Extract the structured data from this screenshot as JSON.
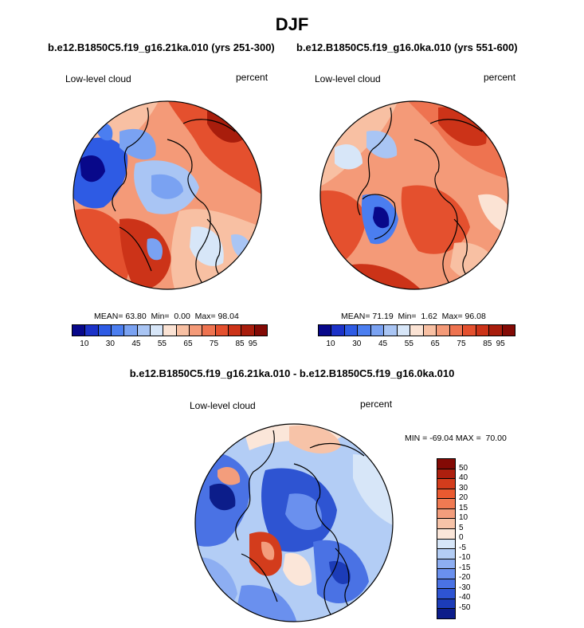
{
  "title": "DJF",
  "panel_left": {
    "subtitle": "b.e12.B1850C5.f19_g16.21ka.010 (yrs 251-300)",
    "variable": "Low-level cloud",
    "units": "percent",
    "stats": "MEAN= 63.80  Min=  0.00  Max= 98.04"
  },
  "panel_right": {
    "subtitle": "b.e12.B1850C5.f19_g16.0ka.010 (yrs 551-600)",
    "variable": "Low-level cloud",
    "units": "percent",
    "stats": "MEAN= 71.19  Min=  1.62  Max= 96.08"
  },
  "panel_diff": {
    "subtitle": "b.e12.B1850C5.f19_g16.21ka.010 - b.e12.B1850C5.f19_g16.0ka.010",
    "variable": "Low-level cloud",
    "units": "percent",
    "stats": "MIN = -69.04 MAX =  70.00"
  },
  "colorbar_abs": {
    "colors": [
      "#08088a",
      "#1c32c8",
      "#2e5be4",
      "#4b7ef0",
      "#7aa2f2",
      "#a9c5f4",
      "#d7e6f8",
      "#fbe3d4",
      "#f8c0a3",
      "#f49a78",
      "#ee7350",
      "#e4502e",
      "#cc3318",
      "#a81d0c",
      "#830a05"
    ],
    "tick_labels": [
      "10",
      "30",
      "45",
      "55",
      "65",
      "75",
      "85",
      "95"
    ]
  },
  "colorbar_diff": {
    "colors": [
      "#830a05",
      "#ad1f0e",
      "#d33c1c",
      "#ea5a30",
      "#f07a52",
      "#f39d7c",
      "#f7c3a8",
      "#fbe6d9",
      "#d7e6f8",
      "#b3cdf5",
      "#8daef2",
      "#6a90ee",
      "#4a72e4",
      "#2e54d2",
      "#1c3cb8",
      "#0c1d8a"
    ],
    "tick_labels": [
      "50",
      "40",
      "30",
      "20",
      "15",
      "10",
      "5",
      "0",
      "-5",
      "-10",
      "-15",
      "-20",
      "-30",
      "-40",
      "-50"
    ]
  }
}
